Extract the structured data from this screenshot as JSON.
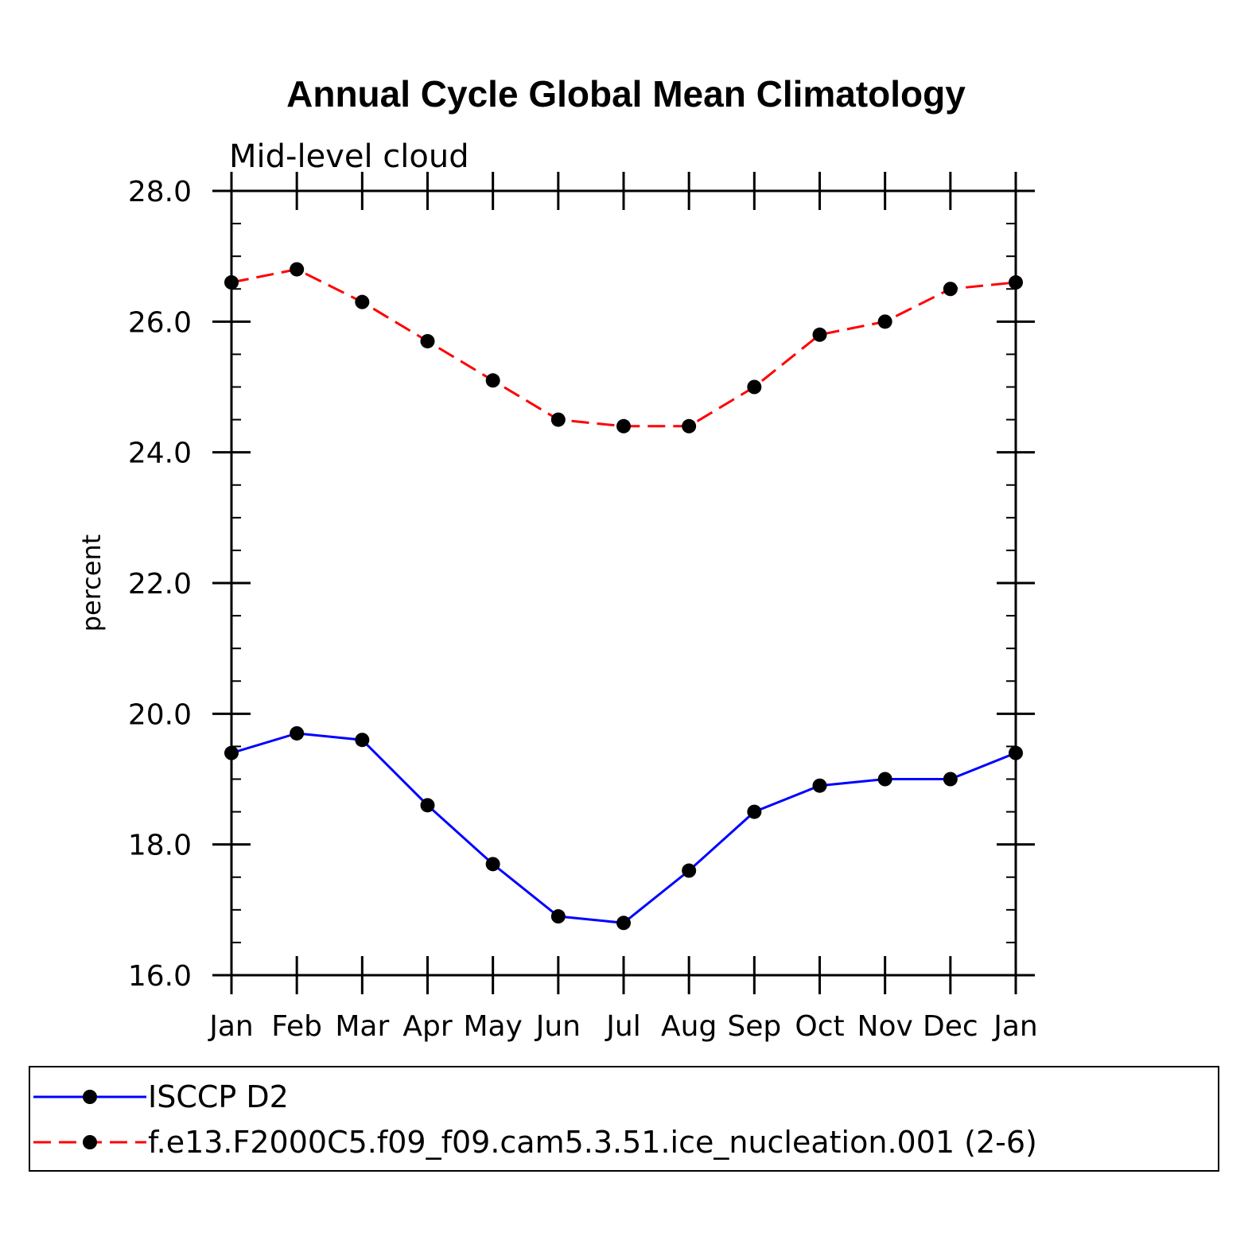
{
  "chart_data": {
    "type": "line",
    "title": "Annual Cycle Global Mean Climatology",
    "subtitle": "Mid-level cloud",
    "xlabel": "",
    "ylabel": "percent",
    "ylim": [
      16.0,
      28.0
    ],
    "y_ticks": [
      "16.0",
      "18.0",
      "20.0",
      "22.0",
      "24.0",
      "26.0",
      "28.0"
    ],
    "y_tick_values": [
      16,
      18,
      20,
      22,
      24,
      26,
      28
    ],
    "categories": [
      "Jan",
      "Feb",
      "Mar",
      "Apr",
      "May",
      "Jun",
      "Jul",
      "Aug",
      "Sep",
      "Oct",
      "Nov",
      "Dec",
      "Jan"
    ],
    "grid": false,
    "legend_position": "bottom",
    "series": [
      {
        "name": "ISCCP D2",
        "color": "#0000ff",
        "dash": "solid",
        "marker": "filled-circle",
        "values": [
          19.4,
          19.7,
          19.6,
          18.6,
          17.7,
          16.9,
          16.8,
          17.6,
          18.5,
          18.9,
          19.0,
          19.0,
          19.4
        ]
      },
      {
        "name": "f.e13.F2000C5.f09_f09.cam5.3.51.ice_nucleation.001 (2-6)",
        "color": "#ff0000",
        "dash": "dashed",
        "marker": "filled-circle",
        "values": [
          26.6,
          26.8,
          26.3,
          25.7,
          25.1,
          24.5,
          24.4,
          24.4,
          25.0,
          25.8,
          26.0,
          26.5,
          26.6
        ]
      }
    ]
  }
}
